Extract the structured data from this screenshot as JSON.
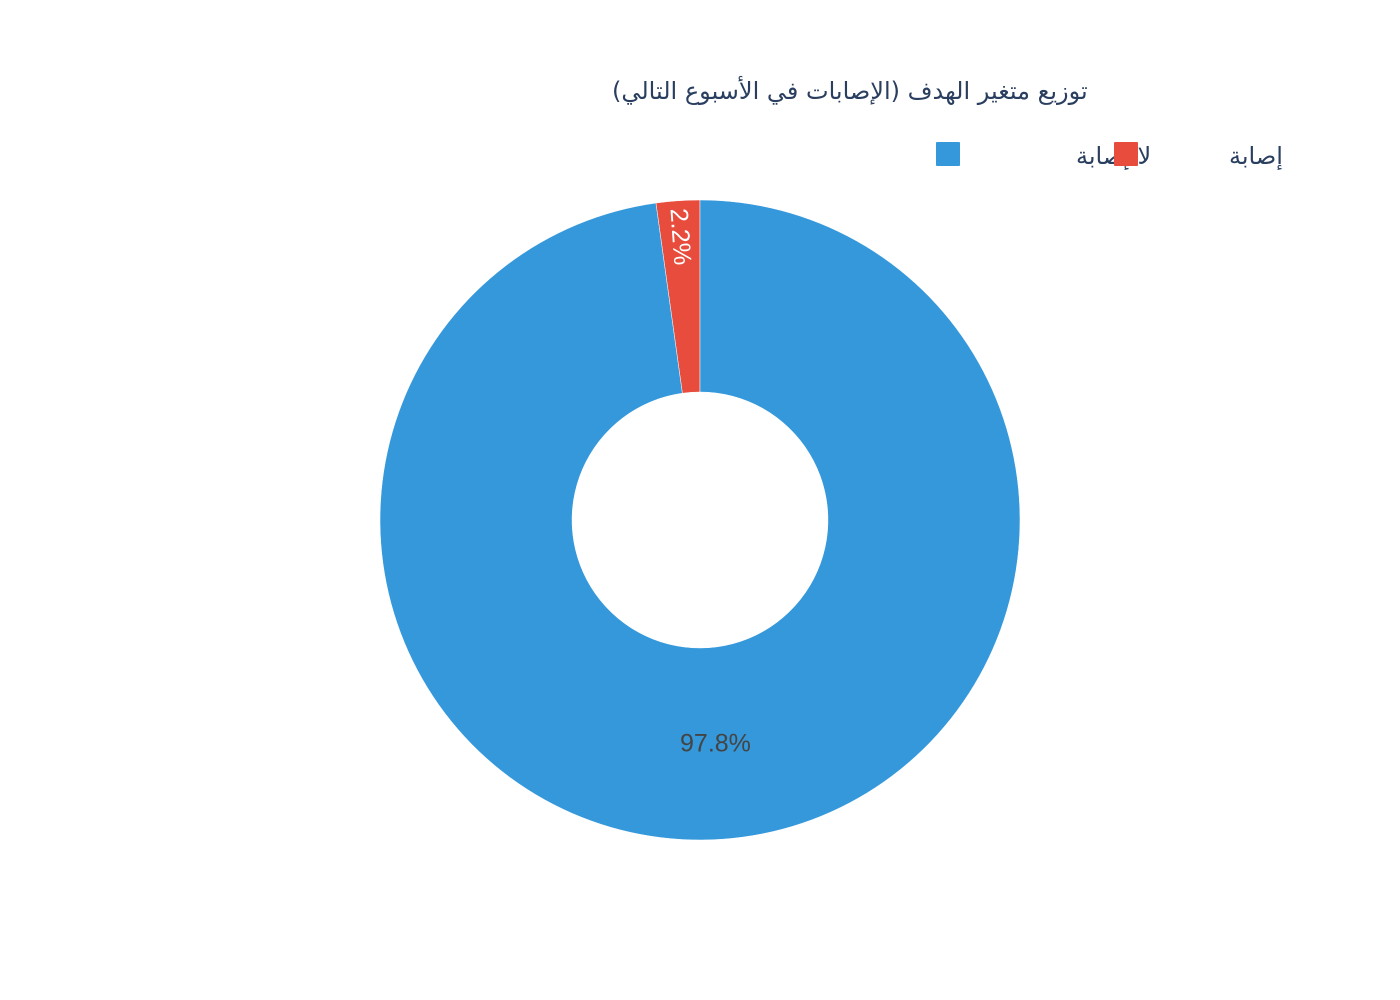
{
  "chart_data": {
    "type": "pie",
    "title": "توزيع متغير الهدف (الإصابات في الأسبوع التالي)",
    "hole": 0.4,
    "slices": [
      {
        "label": "إصابة",
        "value": 2.2,
        "display": "2.2%",
        "color": "#e74c3c",
        "text_color": "#ffffff"
      },
      {
        "label": "لا إصابة",
        "value": 97.8,
        "display": "97.8%",
        "color": "#3498db",
        "text_color": "#444444"
      }
    ],
    "legend": {
      "placement": "top-right",
      "items": [
        {
          "label": "لا إصابة",
          "color": "#3498db"
        },
        {
          "label": "إصابة",
          "color": "#e74c3c"
        }
      ]
    }
  }
}
